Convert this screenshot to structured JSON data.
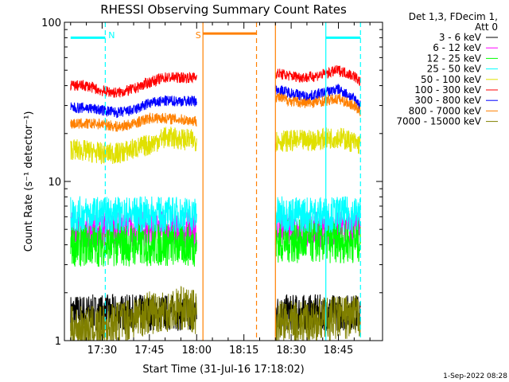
{
  "chart_data": {
    "type": "line",
    "title": "RHESSI Observing Summary Count Rates",
    "xlabel": "Start Time (31-Jul-16 17:18:02)",
    "ylabel": "Count Rate (s⁻¹ detector⁻¹)",
    "yscale": "log",
    "ylim": [
      1,
      100
    ],
    "xlim": [
      "17:18",
      "18:59"
    ],
    "x_ticks": [
      "17:30",
      "17:45",
      "18:00",
      "18:15",
      "18:30",
      "18:45"
    ],
    "y_ticks": [
      "1",
      "10",
      "100"
    ],
    "legend_header": [
      "Det 1,3, FDecim 1,",
      "Att 0"
    ],
    "legend_position": "top-right",
    "footer_date": "1-Sep-2022 08:28",
    "gaps": [
      [
        "18:02",
        "18:25"
      ]
    ],
    "series": [
      {
        "name": "3 - 6 keV",
        "color": "#000000",
        "segments": [
          {
            "x": [
              "17:20",
              "17:35",
              "17:50",
              "18:00"
            ],
            "y": [
              1.5,
              1.5,
              1.5,
              1.5
            ]
          },
          {
            "x": [
              "18:25",
              "18:35",
              "18:45",
              "18:52"
            ],
            "y": [
              1.5,
              1.5,
              1.5,
              1.5
            ]
          }
        ]
      },
      {
        "name": "6 - 12 keV",
        "color": "#ff00ff",
        "segments": [
          {
            "x": [
              "17:20",
              "17:35",
              "17:50",
              "18:00"
            ],
            "y": [
              5.0,
              5.0,
              5.0,
              5.0
            ]
          },
          {
            "x": [
              "18:25",
              "18:35",
              "18:45",
              "18:52"
            ],
            "y": [
              5.0,
              5.0,
              5.0,
              5.0
            ]
          }
        ]
      },
      {
        "name": "12 - 25 keV",
        "color": "#00ff00",
        "segments": [
          {
            "x": [
              "17:20",
              "17:35",
              "17:50",
              "18:00"
            ],
            "y": [
              4.0,
              4.0,
              4.0,
              4.0
            ]
          },
          {
            "x": [
              "18:25",
              "18:35",
              "18:45",
              "18:52"
            ],
            "y": [
              4.2,
              4.2,
              4.2,
              4.2
            ]
          }
        ]
      },
      {
        "name": "25 - 50 keV",
        "color": "#00ffff",
        "segments": [
          {
            "x": [
              "17:20",
              "17:35",
              "17:50",
              "18:00"
            ],
            "y": [
              6.2,
              6.2,
              6.2,
              6.2
            ]
          },
          {
            "x": [
              "18:25",
              "18:35",
              "18:45",
              "18:52"
            ],
            "y": [
              6.2,
              6.2,
              6.2,
              6.2
            ]
          }
        ]
      },
      {
        "name": "50 - 100 keV",
        "color": "#e0e000",
        "segments": [
          {
            "x": [
              "17:20",
              "17:30",
              "17:35",
              "17:45",
              "17:50",
              "18:00"
            ],
            "y": [
              16,
              15,
              15,
              17,
              19,
              18
            ]
          },
          {
            "x": [
              "18:25",
              "18:35",
              "18:45",
              "18:52"
            ],
            "y": [
              18,
              18,
              19,
              17
            ]
          }
        ]
      },
      {
        "name": "100 - 300 keV",
        "color": "#ff0000",
        "segments": [
          {
            "x": [
              "17:20",
              "17:25",
              "17:30",
              "17:35",
              "17:40",
              "17:45",
              "17:50",
              "18:00"
            ],
            "y": [
              40,
              40,
              37,
              36,
              38,
              42,
              45,
              45
            ]
          },
          {
            "x": [
              "18:25",
              "18:30",
              "18:35",
              "18:40",
              "18:45",
              "18:50",
              "18:52"
            ],
            "y": [
              48,
              46,
              45,
              47,
              50,
              46,
              42
            ]
          }
        ]
      },
      {
        "name": "300 - 800 keV",
        "color": "#0000ff",
        "segments": [
          {
            "x": [
              "17:20",
              "17:25",
              "17:30",
              "17:35",
              "17:40",
              "17:45",
              "17:50",
              "18:00"
            ],
            "y": [
              29,
              29,
              28,
              27,
              28,
              31,
              32,
              32
            ]
          },
          {
            "x": [
              "18:25",
              "18:30",
              "18:35",
              "18:40",
              "18:45",
              "18:50",
              "18:52"
            ],
            "y": [
              38,
              36,
              34,
              36,
              38,
              33,
              30
            ]
          }
        ]
      },
      {
        "name": "800 - 7000 keV",
        "color": "#ff8000",
        "segments": [
          {
            "x": [
              "17:20",
              "17:25",
              "17:30",
              "17:35",
              "17:40",
              "17:45",
              "17:50",
              "18:00"
            ],
            "y": [
              23,
              23,
              23,
              22,
              23,
              25,
              25,
              24
            ]
          },
          {
            "x": [
              "18:25",
              "18:30",
              "18:35",
              "18:40",
              "18:45",
              "18:50",
              "18:52"
            ],
            "y": [
              34,
              32,
              31,
              32,
              33,
              30,
              27
            ]
          }
        ]
      },
      {
        "name": "7000 - 15000 keV",
        "color": "#808000",
        "segments": [
          {
            "x": [
              "17:20",
              "17:30",
              "17:35",
              "17:45",
              "17:55",
              "18:00"
            ],
            "y": [
              1.2,
              1.2,
              1.3,
              1.5,
              1.6,
              1.5
            ]
          },
          {
            "x": [
              "18:25",
              "18:35",
              "18:45",
              "18:52"
            ],
            "y": [
              1.3,
              1.3,
              1.4,
              1.4
            ]
          }
        ]
      }
    ],
    "annotations": [
      {
        "label": "N",
        "color": "#00ffff",
        "bar": [
          "17:20",
          "17:31"
        ],
        "y": 80,
        "dashed_end": "17:31"
      },
      {
        "label": "S",
        "color": "#ff8000",
        "bar": [
          "18:02",
          "18:19"
        ],
        "y": 85,
        "solid_start": "18:02",
        "dashed_end": "18:19"
      },
      {
        "label": "",
        "color": "#ff8000",
        "solid_start": "18:25"
      },
      {
        "label": "",
        "color": "#00ffff",
        "bar": [
          "18:41",
          "18:52"
        ],
        "y": 80,
        "solid_start": "18:41",
        "dashed_end": "18:52"
      }
    ]
  }
}
